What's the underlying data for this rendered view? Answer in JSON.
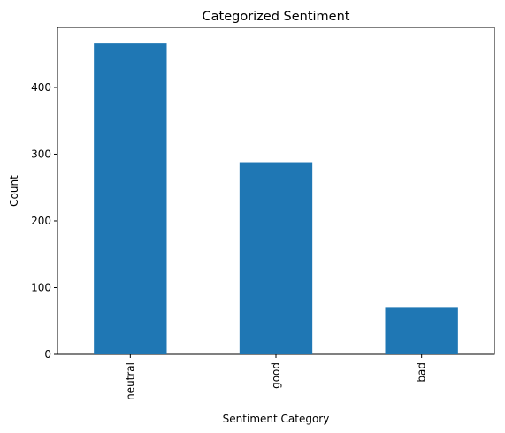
{
  "chart_data": {
    "type": "bar",
    "title": "Categorized Sentiment",
    "xlabel": "Sentiment Category",
    "ylabel": "Count",
    "categories": [
      "neutral",
      "good",
      "bad"
    ],
    "values": [
      466,
      288,
      71
    ],
    "ylim": [
      0,
      490
    ],
    "yticks": [
      0,
      100,
      200,
      300,
      400
    ],
    "bar_color": "#1f77b4",
    "grid": false,
    "legend": "none",
    "x_tick_rotation": "vertical"
  }
}
